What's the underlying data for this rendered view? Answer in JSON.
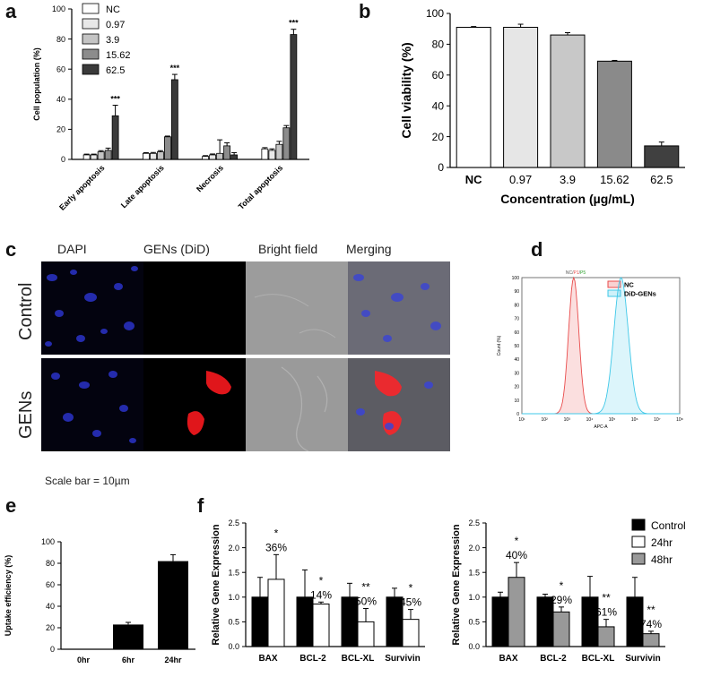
{
  "panels": {
    "a": "a",
    "b": "b",
    "c": "c",
    "d": "d",
    "e": "e",
    "f": "f"
  },
  "chart_data": [
    {
      "id": "a",
      "type": "bar",
      "ylabel": "Cell population (%)",
      "ylim": [
        0,
        100
      ],
      "yticks": [
        0,
        20,
        40,
        60,
        80,
        100
      ],
      "categories": [
        "Early apoptosis",
        "Late apoptosis",
        "Necrosis",
        "Total apoptosis"
      ],
      "series": [
        {
          "name": "NC",
          "color": "#ffffff",
          "values": [
            3,
            4,
            2,
            7
          ],
          "errors": [
            0.5,
            0.5,
            0.5,
            0.8
          ]
        },
        {
          "name": "0.97",
          "color": "#e8e8e8",
          "values": [
            3,
            4,
            3,
            6
          ],
          "errors": [
            0.5,
            0.6,
            0.6,
            1.0
          ]
        },
        {
          "name": "3.9",
          "color": "#c4c4c4",
          "values": [
            5,
            5,
            4,
            10
          ],
          "errors": [
            0.8,
            0.8,
            9,
            2
          ]
        },
        {
          "name": "15.62",
          "color": "#8c8c8c",
          "values": [
            6,
            15,
            9,
            21
          ],
          "errors": [
            1.5,
            0.5,
            2,
            1.5
          ]
        },
        {
          "name": "62.5",
          "color": "#3a3a3a",
          "values": [
            29,
            53,
            3,
            83
          ],
          "errors": [
            7,
            3.5,
            1.5,
            3.5
          ]
        }
      ],
      "annotations": [
        {
          "category": 0,
          "text": "***"
        },
        {
          "category": 1,
          "text": "***"
        },
        {
          "category": 3,
          "text": "***"
        }
      ]
    },
    {
      "id": "b",
      "type": "bar",
      "ylabel": "Cell viability (%)",
      "xlabel": "Concentration (µg/mL)",
      "ylim": [
        0,
        100
      ],
      "yticks": [
        0,
        20,
        40,
        60,
        80,
        100
      ],
      "categories": [
        "NC",
        "0.97",
        "3.9",
        "15.62",
        "62.5"
      ],
      "colors": [
        "#ffffff",
        "#e6e6e6",
        "#c8c8c8",
        "#8a8a8a",
        "#404040"
      ],
      "values": [
        91,
        91,
        86,
        69,
        14
      ],
      "errors": [
        0.5,
        2,
        1.5,
        0.5,
        2.5
      ]
    },
    {
      "id": "d",
      "type": "line",
      "title_parts": [
        "NC",
        "P1",
        "P5"
      ],
      "title_sep": "/",
      "xlabel": "APC-A",
      "ylabel": "Count (%)",
      "xticks": [
        "10¹",
        "10²",
        "10³",
        "10⁴",
        "10⁵",
        "10⁶",
        "10⁷",
        "10⁸"
      ],
      "yticks": [
        0,
        10,
        20,
        30,
        40,
        50,
        60,
        70,
        80,
        90,
        100
      ],
      "series": [
        {
          "name": "NC",
          "color": "#e94b4b",
          "peak_log": 3.3,
          "width": 0.32,
          "peak": 100
        },
        {
          "name": "DiD-GENs",
          "color": "#3fc8e8",
          "peak_log": 5.4,
          "width": 0.45,
          "peak": 100
        }
      ]
    },
    {
      "id": "e",
      "type": "bar",
      "ylabel": "Uptake efficiency (%)",
      "ylim": [
        0,
        100
      ],
      "yticks": [
        0,
        20,
        40,
        60,
        80,
        100
      ],
      "categories": [
        "0hr",
        "6hr",
        "24hr"
      ],
      "values": [
        0,
        23,
        82
      ],
      "errors": [
        0,
        2,
        6
      ]
    },
    {
      "id": "f1",
      "type": "bar",
      "ylabel": "Relative Gene Expression",
      "ylim": [
        0,
        2.5
      ],
      "yticks": [
        "0.0",
        "0.5",
        "1.0",
        "1.5",
        "2.0",
        "2.5"
      ],
      "categories": [
        "BAX",
        "BCL-2",
        "BCL-XL",
        "Survivin"
      ],
      "series": [
        {
          "name": "Control",
          "color": "#000000",
          "values": [
            1.0,
            1.0,
            1.0,
            1.0
          ],
          "errors": [
            0.4,
            0.55,
            0.28,
            0.18
          ]
        },
        {
          "name": "24hr",
          "color": "#ffffff",
          "values": [
            1.36,
            0.86,
            0.5,
            0.55
          ],
          "errors": [
            0.5,
            0.04,
            0.27,
            0.2
          ]
        }
      ],
      "annotations": [
        {
          "category": 0,
          "star": "*",
          "pct": "36%"
        },
        {
          "category": 1,
          "star": "*",
          "pct": "14%"
        },
        {
          "category": 2,
          "star": "**",
          "pct": "50%"
        },
        {
          "category": 3,
          "star": "*",
          "pct": "45%"
        }
      ]
    },
    {
      "id": "f2",
      "type": "bar",
      "ylabel": "Relative Gene Expression",
      "ylim": [
        0,
        2.5
      ],
      "yticks": [
        "0.0",
        "0.5",
        "1.0",
        "1.5",
        "2.0",
        "2.5"
      ],
      "categories": [
        "BAX",
        "BCL-2",
        "BCL-XL",
        "Survivin"
      ],
      "series": [
        {
          "name": "Control",
          "color": "#000000",
          "values": [
            1.0,
            1.0,
            1.0,
            1.0
          ],
          "errors": [
            0.1,
            0.06,
            0.42,
            0.4
          ]
        },
        {
          "name": "48hr",
          "color": "#999999",
          "values": [
            1.4,
            0.7,
            0.4,
            0.26
          ],
          "errors": [
            0.3,
            0.1,
            0.15,
            0.05
          ]
        }
      ],
      "legend": [
        {
          "name": "Control",
          "color": "#000000"
        },
        {
          "name": "24hr",
          "color": "#ffffff"
        },
        {
          "name": "48hr",
          "color": "#999999"
        }
      ],
      "annotations": [
        {
          "category": 0,
          "star": "*",
          "pct": "40%"
        },
        {
          "category": 1,
          "star": "*",
          "pct": "29%"
        },
        {
          "category": 2,
          "star": "**",
          "pct": "61%"
        },
        {
          "category": 3,
          "star": "**",
          "pct": "74%"
        }
      ]
    }
  ],
  "micrographs": {
    "columns": [
      "DAPI",
      "GENs (DiD)",
      "Bright field",
      "Merging"
    ],
    "rows": [
      "Control",
      "GENs"
    ],
    "scale_bar": "Scale bar = 10µm"
  }
}
